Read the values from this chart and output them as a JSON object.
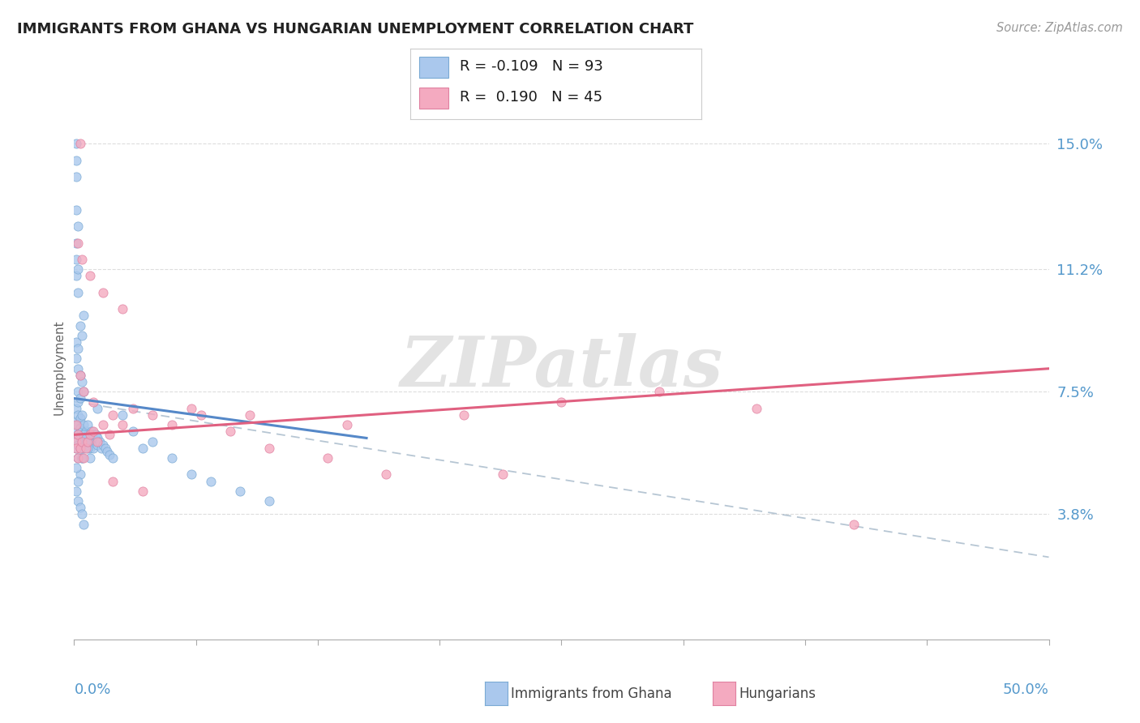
{
  "title": "IMMIGRANTS FROM GHANA VS HUNGARIAN UNEMPLOYMENT CORRELATION CHART",
  "source": "Source: ZipAtlas.com",
  "ylabel_label": "Unemployment",
  "yticks": [
    0.038,
    0.075,
    0.112,
    0.15
  ],
  "ytick_labels": [
    "3.8%",
    "7.5%",
    "11.2%",
    "15.0%"
  ],
  "xlim": [
    0.0,
    0.5
  ],
  "ylim": [
    0.0,
    0.165
  ],
  "legend_r1": "-0.109",
  "legend_n1": "93",
  "legend_r2": "0.190",
  "legend_n2": "45",
  "color_ghana": "#aac8ed",
  "color_ghana_edge": "#7aaad4",
  "color_hungarian": "#f4aac0",
  "color_hungarian_edge": "#e080a0",
  "color_ghana_line": "#5588c8",
  "color_hungarian_line": "#e06080",
  "color_dashed": "#aabccc",
  "tick_color": "#5599cc",
  "grid_color": "#dddddd",
  "title_color": "#222222",
  "source_color": "#999999",
  "axis_label_color": "#666666",
  "watermark_text": "ZIPatlas",
  "ghana_x": [
    0.001,
    0.001,
    0.001,
    0.001,
    0.001,
    0.002,
    0.002,
    0.002,
    0.002,
    0.002,
    0.002,
    0.002,
    0.003,
    0.003,
    0.003,
    0.003,
    0.003,
    0.004,
    0.004,
    0.004,
    0.004,
    0.005,
    0.005,
    0.005,
    0.005,
    0.006,
    0.006,
    0.006,
    0.007,
    0.007,
    0.007,
    0.008,
    0.008,
    0.008,
    0.009,
    0.009,
    0.01,
    0.01,
    0.01,
    0.011,
    0.011,
    0.012,
    0.012,
    0.013,
    0.014,
    0.015,
    0.016,
    0.017,
    0.018,
    0.02,
    0.001,
    0.001,
    0.002,
    0.002,
    0.003,
    0.003,
    0.004,
    0.004,
    0.005,
    0.005,
    0.001,
    0.002,
    0.001,
    0.001,
    0.002,
    0.001,
    0.001,
    0.002,
    0.001,
    0.001,
    0.001,
    0.002,
    0.003,
    0.004,
    0.005,
    0.025,
    0.03,
    0.035,
    0.04,
    0.05,
    0.06,
    0.07,
    0.085,
    0.1,
    0.012,
    0.008,
    0.007,
    0.006,
    0.005,
    0.004,
    0.003,
    0.002,
    0.001
  ],
  "ghana_y": [
    0.06,
    0.063,
    0.066,
    0.058,
    0.07,
    0.062,
    0.065,
    0.068,
    0.059,
    0.055,
    0.072,
    0.075,
    0.061,
    0.064,
    0.067,
    0.058,
    0.073,
    0.06,
    0.063,
    0.068,
    0.055,
    0.062,
    0.065,
    0.06,
    0.058,
    0.063,
    0.061,
    0.059,
    0.062,
    0.065,
    0.06,
    0.058,
    0.062,
    0.06,
    0.06,
    0.063,
    0.06,
    0.062,
    0.058,
    0.06,
    0.062,
    0.059,
    0.061,
    0.06,
    0.058,
    0.059,
    0.058,
    0.057,
    0.056,
    0.055,
    0.09,
    0.085,
    0.088,
    0.082,
    0.08,
    0.095,
    0.078,
    0.092,
    0.075,
    0.098,
    0.11,
    0.105,
    0.115,
    0.12,
    0.112,
    0.13,
    0.14,
    0.125,
    0.145,
    0.15,
    0.045,
    0.042,
    0.04,
    0.038,
    0.035,
    0.068,
    0.063,
    0.058,
    0.06,
    0.055,
    0.05,
    0.048,
    0.045,
    0.042,
    0.07,
    0.055,
    0.058,
    0.06,
    0.062,
    0.055,
    0.05,
    0.048,
    0.052
  ],
  "hungarian_x": [
    0.001,
    0.001,
    0.002,
    0.002,
    0.003,
    0.003,
    0.004,
    0.005,
    0.006,
    0.007,
    0.008,
    0.01,
    0.012,
    0.015,
    0.018,
    0.02,
    0.025,
    0.03,
    0.04,
    0.05,
    0.065,
    0.08,
    0.1,
    0.13,
    0.16,
    0.2,
    0.25,
    0.3,
    0.35,
    0.4,
    0.002,
    0.004,
    0.008,
    0.015,
    0.025,
    0.001,
    0.003,
    0.005,
    0.01,
    0.02,
    0.035,
    0.06,
    0.09,
    0.14,
    0.22
  ],
  "hungarian_y": [
    0.06,
    0.058,
    0.055,
    0.062,
    0.058,
    0.15,
    0.06,
    0.055,
    0.058,
    0.06,
    0.062,
    0.063,
    0.06,
    0.065,
    0.062,
    0.068,
    0.065,
    0.07,
    0.068,
    0.065,
    0.068,
    0.063,
    0.058,
    0.055,
    0.05,
    0.068,
    0.072,
    0.075,
    0.07,
    0.035,
    0.12,
    0.115,
    0.11,
    0.105,
    0.1,
    0.065,
    0.08,
    0.075,
    0.072,
    0.048,
    0.045,
    0.07,
    0.068,
    0.065,
    0.05
  ],
  "ghana_line_x": [
    0.0,
    0.15
  ],
  "ghana_line_y": [
    0.073,
    0.061
  ],
  "hungarian_line_x": [
    0.0,
    0.5
  ],
  "hungarian_line_y": [
    0.062,
    0.082
  ],
  "dashed_line_x": [
    0.0,
    0.5
  ],
  "dashed_line_y": [
    0.072,
    0.025
  ]
}
